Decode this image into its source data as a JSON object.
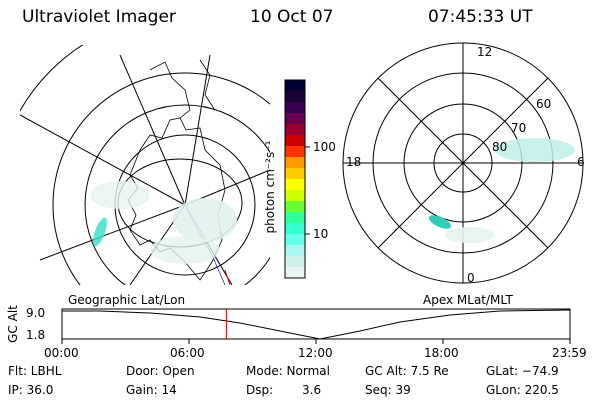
{
  "header": {
    "instrument": "Ultraviolet Imager",
    "date": "10 Oct 07",
    "time": "07:45:33 UT"
  },
  "colorbar": {
    "unit_label": "photon cm⁻²s⁻¹",
    "tick_100": "100",
    "tick_10": "10",
    "colors": [
      "#000033",
      "#1a0033",
      "#3a0050",
      "#6a0050",
      "#9a0030",
      "#cc0000",
      "#ff3300",
      "#ff9900",
      "#ffcc00",
      "#ffff00",
      "#ccff00",
      "#66ff33",
      "#33ff99",
      "#33ffcc",
      "#66ffee",
      "#aaf5ee",
      "#d0f0ec",
      "#e8f4f2"
    ]
  },
  "polar": {
    "labels": {
      "top": "12",
      "bottom": "0",
      "left": "18",
      "right": "6",
      "r60": "60",
      "r70": "70",
      "r80": "80"
    }
  },
  "timeline": {
    "left_label": "Geographic Lat/Lon",
    "right_label": "Apex MLat/MLT",
    "axis_title": "GC Alt",
    "y_ticks": [
      "9.0",
      "1.8"
    ],
    "x_ticks": [
      "00:00",
      "06:00",
      "12:00",
      "18:00",
      "23:59"
    ],
    "marker_time": "07:45:33",
    "marker_color": "#dd0000"
  },
  "footer": {
    "row1": {
      "flt": "Flt: LBHL",
      "door": "Door: Open",
      "mode": "Mode: Normal",
      "gcalt": "GC Alt: 7.5 Re",
      "glat": "GLat: −74.9"
    },
    "row2": {
      "ip": "IP: 36.0",
      "gain": "Gain: 14",
      "dsp_label": "Dsp:",
      "dsp_value": "3.6",
      "seq": "Seq: 39",
      "glon": "GLon: 220.5"
    }
  }
}
